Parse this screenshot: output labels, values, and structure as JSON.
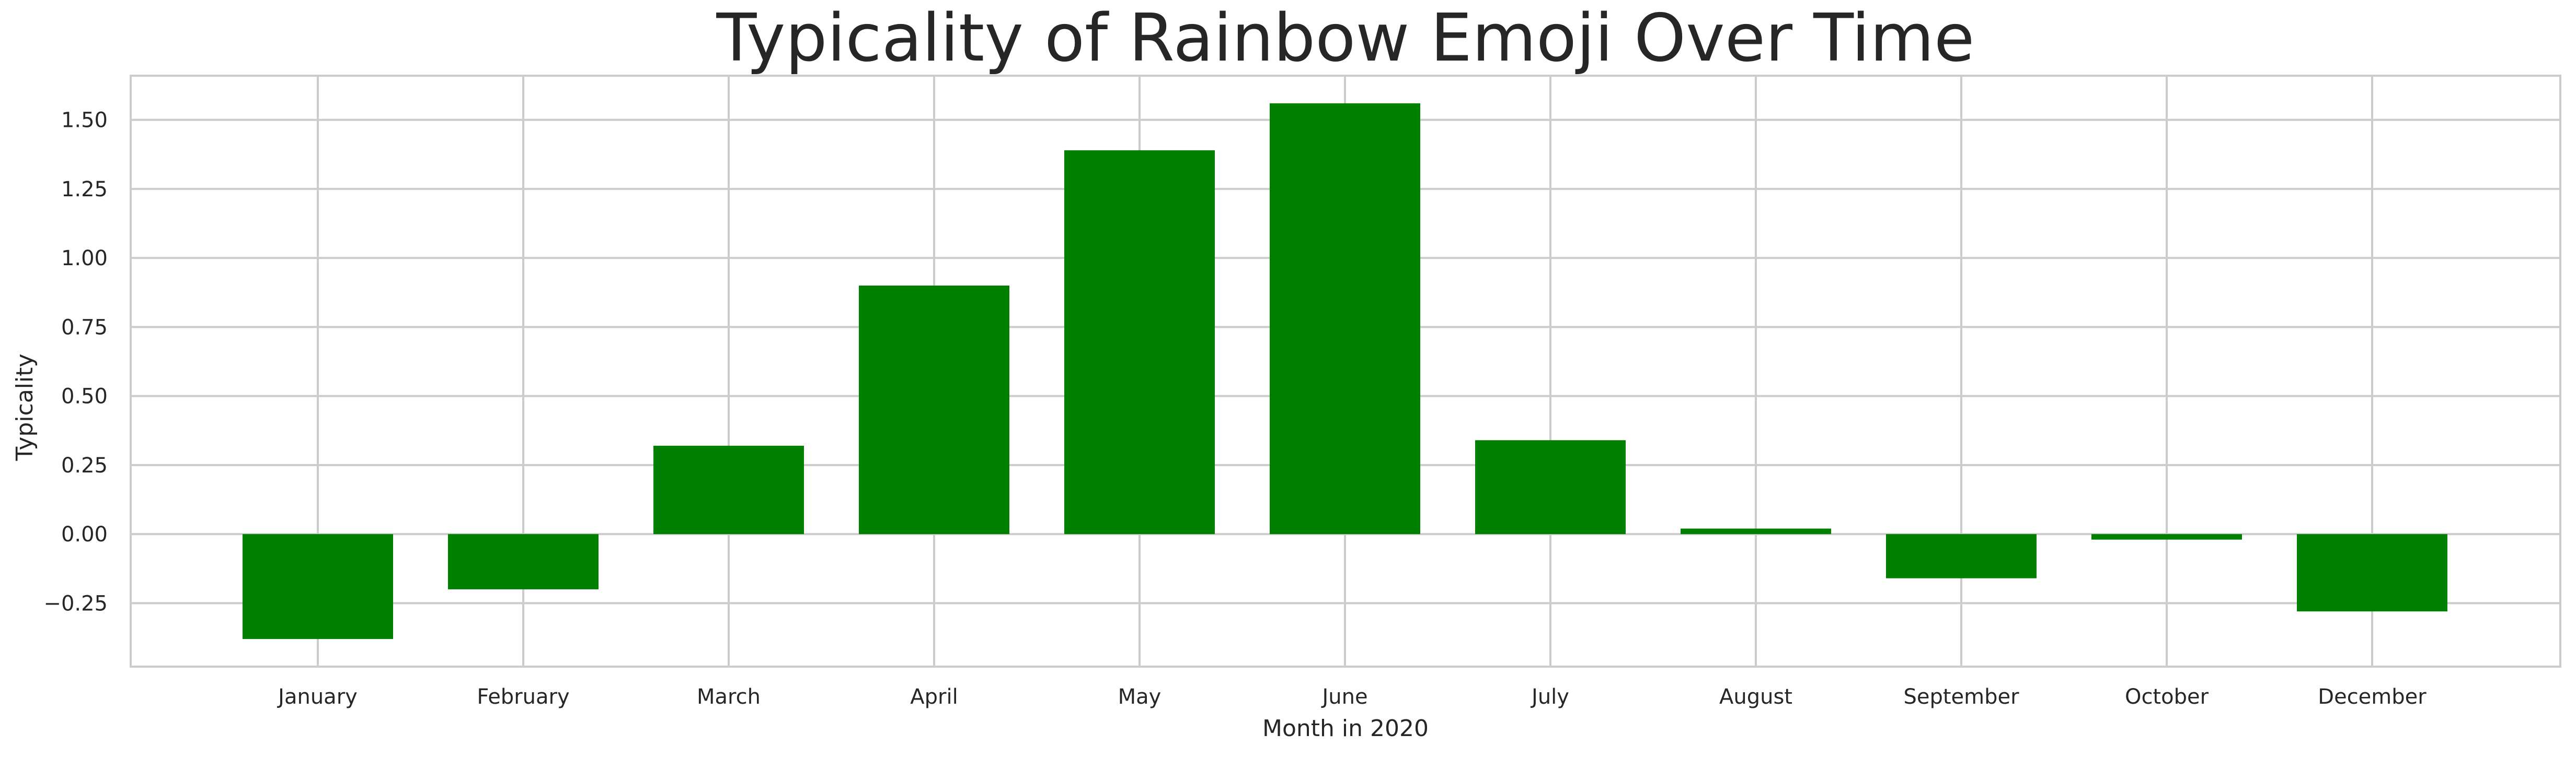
{
  "chart_data": {
    "type": "bar",
    "title": "Typicality of Rainbow Emoji Over Time",
    "xlabel": "Month in 2020",
    "ylabel": "Typicality",
    "categories": [
      "January",
      "February",
      "March",
      "April",
      "May",
      "June",
      "July",
      "August",
      "September",
      "October",
      "December"
    ],
    "values": [
      -0.38,
      -0.2,
      0.32,
      0.9,
      1.39,
      1.56,
      0.34,
      0.02,
      -0.16,
      -0.02,
      -0.28
    ],
    "ylim": [
      -0.48,
      1.66
    ],
    "yticks": [
      -0.25,
      0.0,
      0.25,
      0.5,
      0.75,
      1.0,
      1.25,
      1.5
    ],
    "ytick_labels": [
      "−0.25",
      "0.00",
      "0.25",
      "0.50",
      "0.75",
      "1.00",
      "1.25",
      "1.50"
    ],
    "grid": true,
    "bar_color": "#008000",
    "grid_color": "#cccccc",
    "text_color": "#262626"
  }
}
